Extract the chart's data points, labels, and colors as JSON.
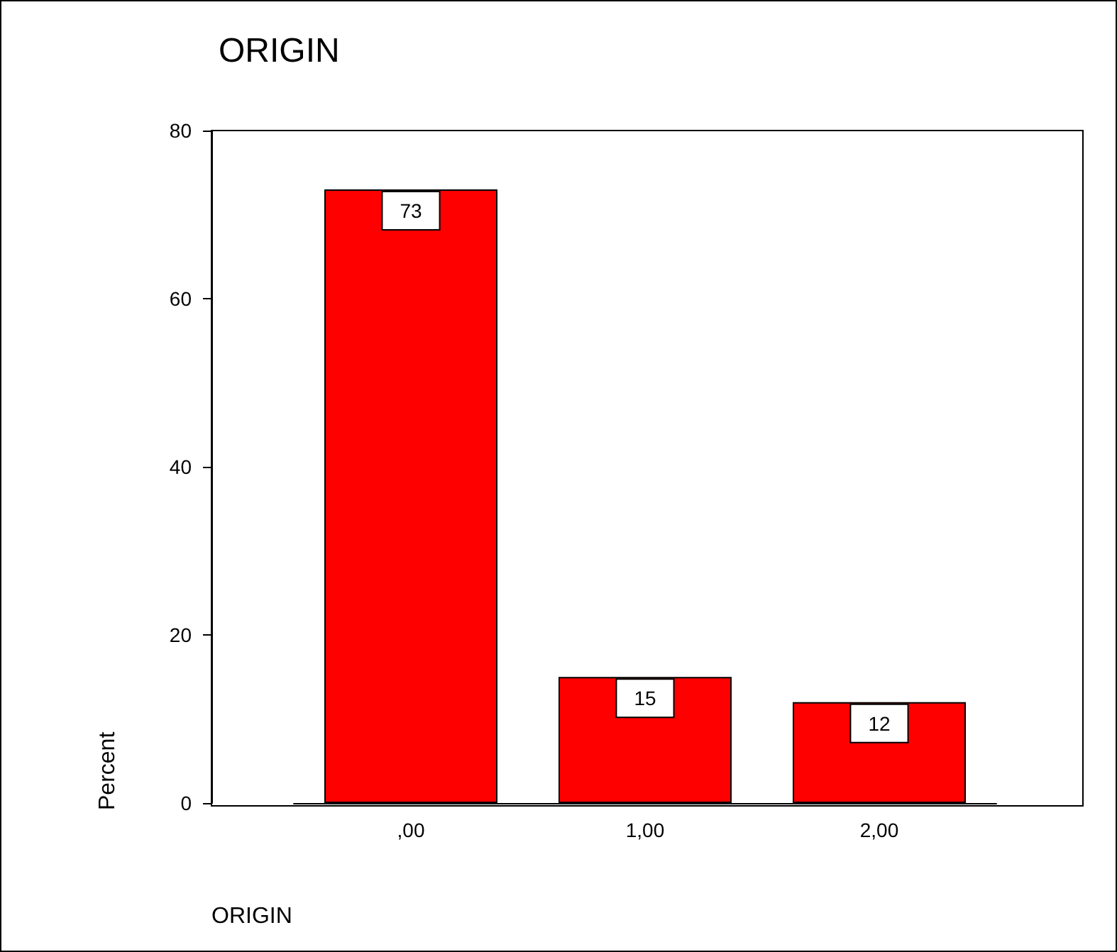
{
  "chart_data": {
    "type": "bar",
    "title": "ORIGIN",
    "xlabel": "ORIGIN",
    "ylabel": "Percent",
    "categories": [
      ",00",
      "1,00",
      "2,00"
    ],
    "values": [
      73,
      15,
      12
    ],
    "color": "#ff0000",
    "ylim": [
      0,
      80
    ],
    "yticks": [
      0,
      20,
      40,
      60,
      80
    ],
    "data_labels": true,
    "grid": false
  }
}
